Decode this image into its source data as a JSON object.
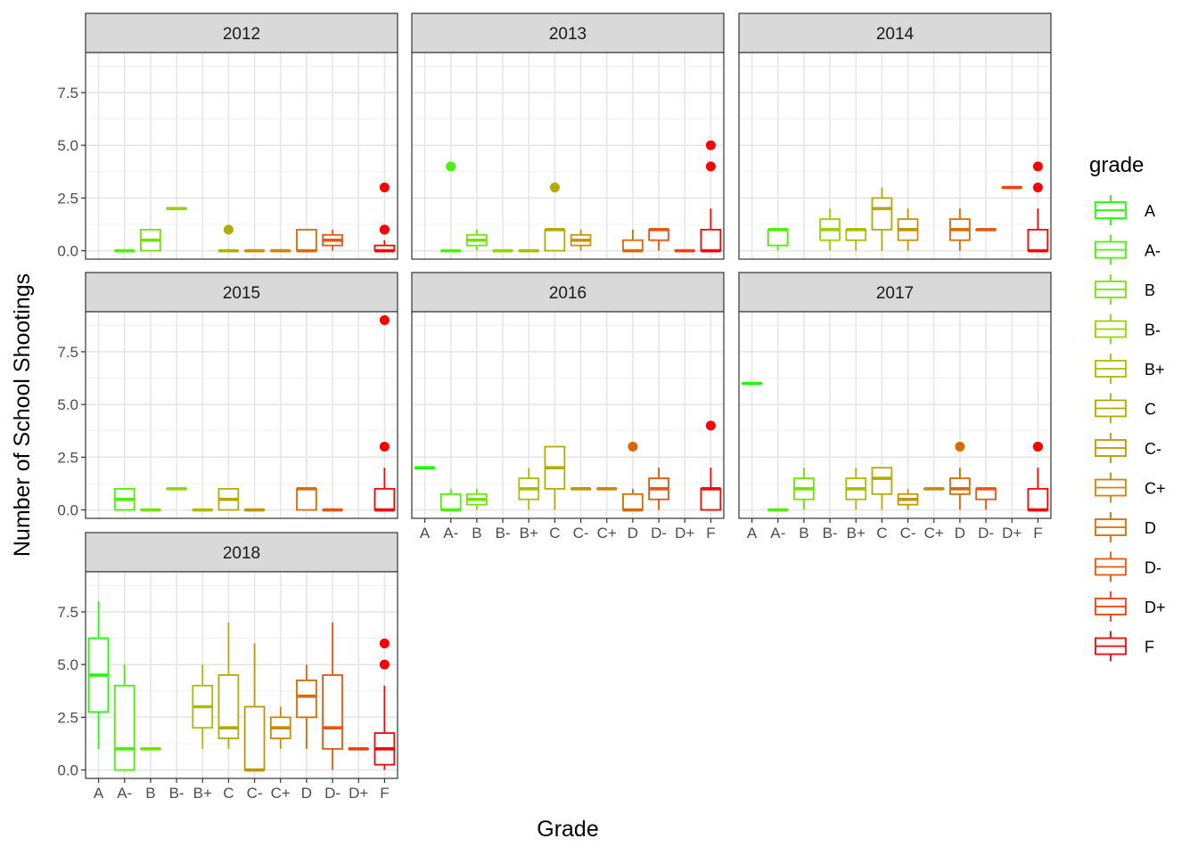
{
  "chart_data": {
    "type": "boxplot",
    "facet_by": "year",
    "xlabel": "Grade",
    "ylabel": "Number of School Shootings",
    "ylim": [
      -0.4,
      9.4
    ],
    "yticks": [
      "0.0",
      "2.5",
      "5.0",
      "7.5"
    ],
    "ytick_values": [
      0,
      2.5,
      5,
      7.5
    ],
    "grades": [
      "A",
      "A-",
      "B",
      "B-",
      "B+",
      "C",
      "C-",
      "C+",
      "D",
      "D-",
      "D+",
      "F"
    ],
    "colors": {
      "A": "#19ff00",
      "A-": "#49f200",
      "B": "#70e400",
      "B-": "#95d400",
      "B+": "#abbc00",
      "C": "#b5aa00",
      "C-": "#c49300",
      "C+": "#cf8600",
      "D": "#db6900",
      "D-": "#e8550b",
      "D+": "#f23f08",
      "F": "#ff0000"
    },
    "legend": {
      "title": "grade",
      "position": "right"
    },
    "panel_grid": true,
    "panels": [
      {
        "title": "2012",
        "show_x_ticks": false,
        "boxes": [
          {
            "grade": "A-",
            "min": 0,
            "q1": 0,
            "median": 0,
            "q3": 0,
            "max": 0
          },
          {
            "grade": "B",
            "min": 0,
            "q1": 0,
            "median": 0.5,
            "q3": 1,
            "max": 1
          },
          {
            "grade": "B-",
            "min": 2,
            "q1": 2,
            "median": 2,
            "q3": 2,
            "max": 2
          },
          {
            "grade": "C",
            "min": 0,
            "q1": 0,
            "median": 0,
            "q3": 0,
            "max": 0,
            "outliers": [
              1
            ]
          },
          {
            "grade": "C-",
            "min": 0,
            "q1": 0,
            "median": 0,
            "q3": 0,
            "max": 0
          },
          {
            "grade": "C+",
            "min": 0,
            "q1": 0,
            "median": 0,
            "q3": 0,
            "max": 0
          },
          {
            "grade": "D",
            "min": 0,
            "q1": 0,
            "median": 0,
            "q3": 1,
            "max": 1
          },
          {
            "grade": "D-",
            "min": 0,
            "q1": 0.25,
            "median": 0.5,
            "q3": 0.75,
            "max": 1
          },
          {
            "grade": "F",
            "min": 0,
            "q1": 0,
            "median": 0,
            "q3": 0.25,
            "max": 0.5,
            "outliers": [
              1,
              1,
              3
            ]
          }
        ]
      },
      {
        "title": "2013",
        "show_x_ticks": false,
        "boxes": [
          {
            "grade": "A-",
            "min": 0,
            "q1": 0,
            "median": 0,
            "q3": 0,
            "max": 0,
            "outliers": [
              4
            ]
          },
          {
            "grade": "B",
            "min": 0,
            "q1": 0.25,
            "median": 0.5,
            "q3": 0.75,
            "max": 1
          },
          {
            "grade": "B-",
            "min": 0,
            "q1": 0,
            "median": 0,
            "q3": 0,
            "max": 0
          },
          {
            "grade": "B+",
            "min": 0,
            "q1": 0,
            "median": 0,
            "q3": 0,
            "max": 0
          },
          {
            "grade": "C",
            "min": 0,
            "q1": 0,
            "median": 1,
            "q3": 1,
            "max": 1,
            "outliers": [
              3
            ]
          },
          {
            "grade": "C-",
            "min": 0,
            "q1": 0.25,
            "median": 0.5,
            "q3": 0.75,
            "max": 1
          },
          {
            "grade": "D",
            "min": 0,
            "q1": 0,
            "median": 0,
            "q3": 0.5,
            "max": 1
          },
          {
            "grade": "D-",
            "min": 0,
            "q1": 0.5,
            "median": 1,
            "q3": 1,
            "max": 1
          },
          {
            "grade": "D+",
            "min": 0,
            "q1": 0,
            "median": 0,
            "q3": 0,
            "max": 0
          },
          {
            "grade": "F",
            "min": 0,
            "q1": 0,
            "median": 0,
            "q3": 1,
            "max": 2,
            "outliers": [
              4,
              5
            ]
          }
        ]
      },
      {
        "title": "2014",
        "show_x_ticks": false,
        "boxes": [
          {
            "grade": "A-",
            "min": 0,
            "q1": 0.25,
            "median": 1,
            "q3": 1,
            "max": 1
          },
          {
            "grade": "B-",
            "min": 0,
            "q1": 0.5,
            "median": 1,
            "q3": 1.5,
            "max": 2
          },
          {
            "grade": "B+",
            "min": 0,
            "q1": 0.5,
            "median": 1,
            "q3": 1,
            "max": 1
          },
          {
            "grade": "C",
            "min": 0,
            "q1": 1,
            "median": 2,
            "q3": 2.5,
            "max": 3
          },
          {
            "grade": "C-",
            "min": 0,
            "q1": 0.5,
            "median": 1,
            "q3": 1.5,
            "max": 2
          },
          {
            "grade": "D",
            "min": 0,
            "q1": 0.5,
            "median": 1,
            "q3": 1.5,
            "max": 2
          },
          {
            "grade": "D-",
            "min": 1,
            "q1": 1,
            "median": 1,
            "q3": 1,
            "max": 1
          },
          {
            "grade": "D+",
            "min": 3,
            "q1": 3,
            "median": 3,
            "q3": 3,
            "max": 3
          },
          {
            "grade": "F",
            "min": 0,
            "q1": 0,
            "median": 0,
            "q3": 1,
            "max": 2,
            "outliers": [
              3,
              4
            ]
          }
        ]
      },
      {
        "title": "2015",
        "show_x_ticks": false,
        "boxes": [
          {
            "grade": "A-",
            "min": 0,
            "q1": 0,
            "median": 0.5,
            "q3": 1,
            "max": 1
          },
          {
            "grade": "B",
            "min": 0,
            "q1": 0,
            "median": 0,
            "q3": 0,
            "max": 0
          },
          {
            "grade": "B-",
            "min": 1,
            "q1": 1,
            "median": 1,
            "q3": 1,
            "max": 1
          },
          {
            "grade": "B+",
            "min": 0,
            "q1": 0,
            "median": 0,
            "q3": 0,
            "max": 0
          },
          {
            "grade": "C",
            "min": 0,
            "q1": 0,
            "median": 0.5,
            "q3": 1,
            "max": 1
          },
          {
            "grade": "C-",
            "min": 0,
            "q1": 0,
            "median": 0,
            "q3": 0,
            "max": 0
          },
          {
            "grade": "D",
            "min": 0,
            "q1": 0,
            "median": 1,
            "q3": 1,
            "max": 1
          },
          {
            "grade": "D-",
            "min": 0,
            "q1": 0,
            "median": 0,
            "q3": 0,
            "max": 0
          },
          {
            "grade": "F",
            "min": 0,
            "q1": 0,
            "median": 0,
            "q3": 1,
            "max": 2,
            "outliers": [
              3,
              9
            ]
          }
        ]
      },
      {
        "title": "2016",
        "show_x_ticks": true,
        "boxes": [
          {
            "grade": "A",
            "min": 2,
            "q1": 2,
            "median": 2,
            "q3": 2,
            "max": 2
          },
          {
            "grade": "A-",
            "min": 0,
            "q1": 0,
            "median": 0,
            "q3": 0.75,
            "max": 1
          },
          {
            "grade": "B",
            "min": 0,
            "q1": 0.25,
            "median": 0.5,
            "q3": 0.75,
            "max": 1
          },
          {
            "grade": "B+",
            "min": 0,
            "q1": 0.5,
            "median": 1,
            "q3": 1.5,
            "max": 2
          },
          {
            "grade": "C",
            "min": 0,
            "q1": 1,
            "median": 2,
            "q3": 3,
            "max": 3
          },
          {
            "grade": "C-",
            "min": 1,
            "q1": 1,
            "median": 1,
            "q3": 1,
            "max": 1
          },
          {
            "grade": "C+",
            "min": 1,
            "q1": 1,
            "median": 1,
            "q3": 1,
            "max": 1
          },
          {
            "grade": "D",
            "min": 0,
            "q1": 0,
            "median": 0,
            "q3": 0.75,
            "max": 1,
            "outliers": [
              3
            ]
          },
          {
            "grade": "D-",
            "min": 0,
            "q1": 0.5,
            "median": 1,
            "q3": 1.5,
            "max": 2
          },
          {
            "grade": "F",
            "min": 0,
            "q1": 0,
            "median": 1,
            "q3": 1,
            "max": 2,
            "outliers": [
              4
            ]
          }
        ]
      },
      {
        "title": "2017",
        "show_x_ticks": true,
        "boxes": [
          {
            "grade": "A",
            "min": 6,
            "q1": 6,
            "median": 6,
            "q3": 6,
            "max": 6
          },
          {
            "grade": "A-",
            "min": 0,
            "q1": 0,
            "median": 0,
            "q3": 0,
            "max": 0
          },
          {
            "grade": "B",
            "min": 0,
            "q1": 0.5,
            "median": 1,
            "q3": 1.5,
            "max": 2
          },
          {
            "grade": "B+",
            "min": 0,
            "q1": 0.5,
            "median": 1,
            "q3": 1.5,
            "max": 2
          },
          {
            "grade": "C",
            "min": 0,
            "q1": 0.75,
            "median": 1.5,
            "q3": 2,
            "max": 2
          },
          {
            "grade": "C-",
            "min": 0,
            "q1": 0.25,
            "median": 0.5,
            "q3": 0.75,
            "max": 1
          },
          {
            "grade": "C+",
            "min": 1,
            "q1": 1,
            "median": 1,
            "q3": 1,
            "max": 1
          },
          {
            "grade": "D",
            "min": 0,
            "q1": 0.75,
            "median": 1,
            "q3": 1.5,
            "max": 2,
            "outliers": [
              3
            ]
          },
          {
            "grade": "D-",
            "min": 0,
            "q1": 0.5,
            "median": 1,
            "q3": 1,
            "max": 1
          },
          {
            "grade": "F",
            "min": 0,
            "q1": 0,
            "median": 0,
            "q3": 1,
            "max": 2,
            "outliers": [
              3,
              3
            ]
          }
        ]
      },
      {
        "title": "2018",
        "show_x_ticks": true,
        "boxes": [
          {
            "grade": "A",
            "min": 1,
            "q1": 2.75,
            "median": 4.5,
            "q3": 6.25,
            "max": 8
          },
          {
            "grade": "A-",
            "min": 0,
            "q1": 0,
            "median": 1,
            "q3": 4,
            "max": 5
          },
          {
            "grade": "B",
            "min": 1,
            "q1": 1,
            "median": 1,
            "q3": 1,
            "max": 1
          },
          {
            "grade": "B+",
            "min": 1,
            "q1": 2,
            "median": 3,
            "q3": 4,
            "max": 5
          },
          {
            "grade": "C",
            "min": 1,
            "q1": 1.5,
            "median": 2,
            "q3": 4.5,
            "max": 7
          },
          {
            "grade": "C-",
            "min": 0,
            "q1": 0,
            "median": 0,
            "q3": 3,
            "max": 6
          },
          {
            "grade": "C+",
            "min": 1,
            "q1": 1.5,
            "median": 2,
            "q3": 2.5,
            "max": 3
          },
          {
            "grade": "D",
            "min": 1,
            "q1": 2.5,
            "median": 3.5,
            "q3": 4.25,
            "max": 5
          },
          {
            "grade": "D-",
            "min": 0,
            "q1": 1,
            "median": 2,
            "q3": 4.5,
            "max": 7
          },
          {
            "grade": "D+",
            "min": 1,
            "q1": 1,
            "median": 1,
            "q3": 1,
            "max": 1
          },
          {
            "grade": "F",
            "min": 0,
            "q1": 0.25,
            "median": 1,
            "q3": 1.75,
            "max": 4,
            "outliers": [
              5,
              6
            ]
          }
        ]
      }
    ]
  }
}
